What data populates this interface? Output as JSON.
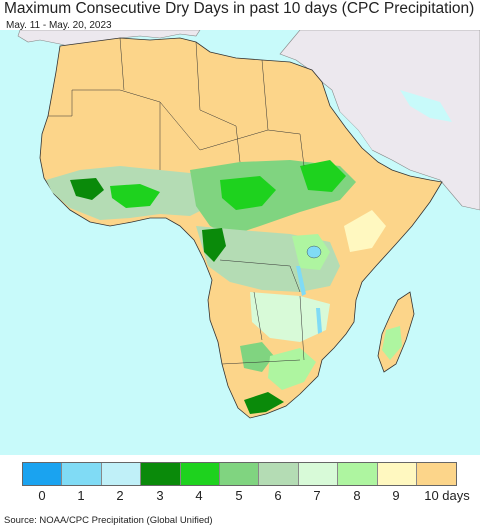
{
  "title": "Maximum Consecutive Dry Days in past 10 days (CPC Precipitation)",
  "date_range": "May. 11 - May. 20, 2023",
  "source": "Source: NOAA/CPC Precipitation (Global Unified)",
  "legend": {
    "labels": [
      "0",
      "1",
      "2",
      "3",
      "4",
      "5",
      "6",
      "7",
      "8",
      "9",
      "10 days"
    ],
    "colors": [
      "#1aa3f0",
      "#80dbf5",
      "#c0f0f8",
      "#0a8a0a",
      "#1ed21e",
      "#80d480",
      "#b4dcb4",
      "#d8fad8",
      "#aef5a0",
      "#fff8c0",
      "#fcd58a"
    ]
  },
  "map": {
    "ocean_color": "#c8fafa",
    "land_dry_color": "#fcd58a",
    "no_data_color": "#ece8ee"
  }
}
